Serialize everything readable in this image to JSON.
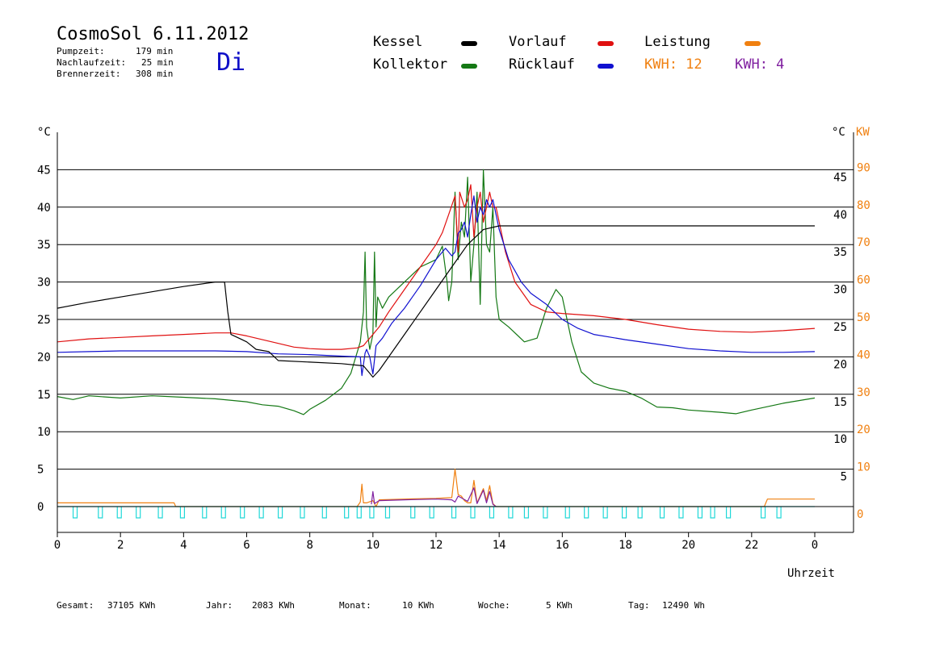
{
  "header": {
    "title": "CosmoSol 6.11.2012",
    "day": "Di",
    "stats": [
      {
        "label": "Pumpzeit:",
        "value": "179 min"
      },
      {
        "label": "Nachlaufzeit:",
        "value": "25 min"
      },
      {
        "label": "Brennerzeit:",
        "value": "308 min"
      }
    ]
  },
  "legend": [
    {
      "label": "Kessel",
      "color": "#000000"
    },
    {
      "label": "Kollektor",
      "color": "#147814"
    },
    {
      "label": "Vorlauf",
      "color": "#e01010"
    },
    {
      "label": "Rücklauf",
      "color": "#1010d0"
    },
    {
      "label": "Leistung",
      "color": "#f08010"
    },
    {
      "label": "KWH: 12",
      "color": "#f08010"
    },
    {
      "label": "KWH: 4",
      "color": "#8020a0"
    }
  ],
  "footer": [
    {
      "label": "Gesamt:",
      "value": "37105 KWh"
    },
    {
      "label": "Jahr:",
      "value": "2083 KWh"
    },
    {
      "label": "Monat:",
      "value": "10 KWh"
    },
    {
      "label": "Woche:",
      "value": "5 KWh"
    },
    {
      "label": "Tag:",
      "value": "12490 Wh"
    }
  ],
  "chart_data": {
    "type": "line",
    "xlabel": "Uhrzeit",
    "ylabel": "°C",
    "ylabel_right": "KW",
    "xlim": [
      0,
      24
    ],
    "ylim": [
      0,
      50
    ],
    "x_tick_labels": [
      "0",
      "2",
      "4",
      "6",
      "8",
      "10",
      "12",
      "14",
      "16",
      "18",
      "20",
      "22",
      "0"
    ],
    "y_tick_labels": [
      "0",
      "5",
      "10",
      "15",
      "20",
      "25",
      "30",
      "35",
      "40",
      "45"
    ],
    "y_right_labels": [
      "5",
      "10",
      "15",
      "20",
      "25",
      "30",
      "35",
      "40",
      "45"
    ],
    "kw_tick_labels": [
      "0",
      "10",
      "20",
      "30",
      "40",
      "50",
      "60",
      "70",
      "80",
      "90"
    ],
    "grid": "horizontal",
    "series": [
      {
        "name": "Kessel",
        "color": "#000000",
        "points": [
          [
            0,
            26.5
          ],
          [
            1,
            27.3
          ],
          [
            2,
            28.0
          ],
          [
            3,
            28.7
          ],
          [
            4,
            29.4
          ],
          [
            5,
            30
          ],
          [
            5.3,
            30
          ],
          [
            5.4,
            26
          ],
          [
            5.5,
            23
          ],
          [
            5.8,
            22.4
          ],
          [
            6,
            22
          ],
          [
            6.3,
            21
          ],
          [
            6.7,
            20.7
          ],
          [
            7,
            19.5
          ],
          [
            8,
            19.3
          ],
          [
            9,
            19.1
          ],
          [
            9.7,
            18.8
          ],
          [
            9.9,
            17.8
          ],
          [
            10,
            17.3
          ],
          [
            10.2,
            18.2
          ],
          [
            10.5,
            20
          ],
          [
            11,
            23
          ],
          [
            11.5,
            26
          ],
          [
            12,
            29
          ],
          [
            12.5,
            32
          ],
          [
            13,
            35
          ],
          [
            13.5,
            37
          ],
          [
            14,
            37.5
          ],
          [
            15,
            37.5
          ],
          [
            18,
            37.5
          ],
          [
            20,
            37.5
          ],
          [
            22,
            37.5
          ],
          [
            24,
            37.5
          ]
        ]
      },
      {
        "name": "Kollektor",
        "color": "#147814",
        "points": [
          [
            0,
            14.7
          ],
          [
            0.5,
            14.3
          ],
          [
            1,
            14.8
          ],
          [
            2,
            14.5
          ],
          [
            3,
            14.8
          ],
          [
            4,
            14.6
          ],
          [
            5,
            14.4
          ],
          [
            6,
            14
          ],
          [
            6.5,
            13.6
          ],
          [
            7,
            13.4
          ],
          [
            7.5,
            12.8
          ],
          [
            7.8,
            12.3
          ],
          [
            8,
            13
          ],
          [
            8.5,
            14.2
          ],
          [
            9,
            15.8
          ],
          [
            9.3,
            17.8
          ],
          [
            9.6,
            22
          ],
          [
            9.7,
            26
          ],
          [
            9.75,
            34
          ],
          [
            9.8,
            24
          ],
          [
            9.9,
            21
          ],
          [
            10,
            23
          ],
          [
            10.05,
            34
          ],
          [
            10.1,
            24
          ],
          [
            10.15,
            28
          ],
          [
            10.3,
            26.5
          ],
          [
            10.5,
            28
          ],
          [
            11,
            30
          ],
          [
            11.5,
            32
          ],
          [
            12,
            33
          ],
          [
            12.2,
            34.8
          ],
          [
            12.35,
            30
          ],
          [
            12.4,
            27.5
          ],
          [
            12.5,
            30
          ],
          [
            12.6,
            42
          ],
          [
            12.7,
            33
          ],
          [
            12.8,
            38
          ],
          [
            12.9,
            36
          ],
          [
            13,
            44
          ],
          [
            13.1,
            30
          ],
          [
            13.2,
            35
          ],
          [
            13.3,
            42
          ],
          [
            13.4,
            27
          ],
          [
            13.5,
            45
          ],
          [
            13.6,
            35
          ],
          [
            13.7,
            34
          ],
          [
            13.8,
            40
          ],
          [
            13.9,
            28
          ],
          [
            14,
            25
          ],
          [
            14.3,
            24
          ],
          [
            14.8,
            22
          ],
          [
            15.2,
            22.5
          ],
          [
            15.5,
            26.5
          ],
          [
            15.8,
            29
          ],
          [
            16,
            28
          ],
          [
            16.3,
            22
          ],
          [
            16.6,
            18
          ],
          [
            17,
            16.5
          ],
          [
            17.5,
            15.8
          ],
          [
            18,
            15.4
          ],
          [
            18.5,
            14.5
          ],
          [
            19,
            13.3
          ],
          [
            19.5,
            13.2
          ],
          [
            20,
            12.9
          ],
          [
            21,
            12.6
          ],
          [
            21.5,
            12.4
          ],
          [
            22,
            12.9
          ],
          [
            23,
            13.8
          ],
          [
            24,
            14.5
          ]
        ]
      },
      {
        "name": "Vorlauf",
        "color": "#e01010",
        "points": [
          [
            0,
            22
          ],
          [
            1,
            22.4
          ],
          [
            2,
            22.6
          ],
          [
            3,
            22.8
          ],
          [
            4,
            23
          ],
          [
            5,
            23.2
          ],
          [
            5.5,
            23.2
          ],
          [
            6,
            22.8
          ],
          [
            6.5,
            22.3
          ],
          [
            7,
            21.8
          ],
          [
            7.5,
            21.3
          ],
          [
            8,
            21.1
          ],
          [
            8.5,
            21
          ],
          [
            9,
            21
          ],
          [
            9.5,
            21.2
          ],
          [
            9.7,
            21.5
          ],
          [
            9.8,
            22
          ],
          [
            10,
            23
          ],
          [
            10.2,
            24
          ],
          [
            10.5,
            26
          ],
          [
            11,
            29
          ],
          [
            11.5,
            32
          ],
          [
            12,
            35
          ],
          [
            12.2,
            36.6
          ],
          [
            12.4,
            39
          ],
          [
            12.6,
            41.5
          ],
          [
            12.7,
            34
          ],
          [
            12.75,
            42
          ],
          [
            12.9,
            40
          ],
          [
            13,
            41
          ],
          [
            13.1,
            43
          ],
          [
            13.2,
            36
          ],
          [
            13.3,
            40
          ],
          [
            13.4,
            42
          ],
          [
            13.5,
            38
          ],
          [
            13.6,
            40
          ],
          [
            13.7,
            42
          ],
          [
            13.8,
            40
          ],
          [
            13.9,
            40
          ],
          [
            14,
            38
          ],
          [
            14.2,
            34
          ],
          [
            14.5,
            30
          ],
          [
            15,
            27
          ],
          [
            15.5,
            26
          ],
          [
            16,
            25.8
          ],
          [
            17,
            25.5
          ],
          [
            18,
            25
          ],
          [
            19,
            24.3
          ],
          [
            20,
            23.7
          ],
          [
            21,
            23.4
          ],
          [
            22,
            23.3
          ],
          [
            23,
            23.5
          ],
          [
            24,
            23.8
          ]
        ]
      },
      {
        "name": "Rücklauf",
        "color": "#1010d0",
        "points": [
          [
            0,
            20.6
          ],
          [
            1,
            20.7
          ],
          [
            2,
            20.8
          ],
          [
            3,
            20.8
          ],
          [
            4,
            20.8
          ],
          [
            5,
            20.8
          ],
          [
            6,
            20.7
          ],
          [
            7,
            20.4
          ],
          [
            8,
            20.3
          ],
          [
            9,
            20.1
          ],
          [
            9.6,
            20
          ],
          [
            9.65,
            17.5
          ],
          [
            9.75,
            20.5
          ],
          [
            9.8,
            21
          ],
          [
            9.9,
            20
          ],
          [
            10,
            17.7
          ],
          [
            10.1,
            21.5
          ],
          [
            10.3,
            22.5
          ],
          [
            10.6,
            24.5
          ],
          [
            11,
            26.5
          ],
          [
            11.5,
            29.5
          ],
          [
            12,
            33
          ],
          [
            12.3,
            34.5
          ],
          [
            12.5,
            33.5
          ],
          [
            12.6,
            34
          ],
          [
            12.7,
            36.5
          ],
          [
            12.8,
            37
          ],
          [
            12.9,
            38
          ],
          [
            13,
            36
          ],
          [
            13.1,
            39
          ],
          [
            13.2,
            41.5
          ],
          [
            13.3,
            38
          ],
          [
            13.4,
            40
          ],
          [
            13.5,
            39
          ],
          [
            13.6,
            41
          ],
          [
            13.7,
            40
          ],
          [
            13.8,
            41
          ],
          [
            13.9,
            39
          ],
          [
            14,
            37
          ],
          [
            14.3,
            33
          ],
          [
            14.7,
            30
          ],
          [
            15,
            28.5
          ],
          [
            15.5,
            27
          ],
          [
            16,
            25
          ],
          [
            16.5,
            23.8
          ],
          [
            17,
            23
          ],
          [
            18,
            22.3
          ],
          [
            19,
            21.7
          ],
          [
            20,
            21.1
          ],
          [
            21,
            20.8
          ],
          [
            22,
            20.6
          ],
          [
            23,
            20.6
          ],
          [
            24,
            20.7
          ]
        ]
      },
      {
        "name": "Leistung",
        "color": "#f08010",
        "points": [
          [
            0,
            0.5
          ],
          [
            1.5,
            0.5
          ],
          [
            3,
            0.5
          ],
          [
            3.7,
            0.5
          ],
          [
            3.75,
            0
          ],
          [
            9.5,
            0
          ],
          [
            9.6,
            0.6
          ],
          [
            9.65,
            3
          ],
          [
            9.7,
            0.5
          ],
          [
            9.8,
            0.5
          ],
          [
            10,
            0.8
          ],
          [
            10.1,
            0
          ],
          [
            10.2,
            0.9
          ],
          [
            11,
            1
          ],
          [
            12,
            1.1
          ],
          [
            12.5,
            1.2
          ],
          [
            12.6,
            5
          ],
          [
            12.7,
            1.6
          ],
          [
            12.8,
            1.4
          ],
          [
            12.9,
            0.8
          ],
          [
            13,
            0.5
          ],
          [
            13.1,
            0.5
          ],
          [
            13.2,
            3.5
          ],
          [
            13.3,
            0.5
          ],
          [
            13.5,
            2.4
          ],
          [
            13.6,
            0.8
          ],
          [
            13.7,
            2.8
          ],
          [
            13.8,
            0.4
          ],
          [
            13.9,
            0
          ],
          [
            22.4,
            0
          ],
          [
            22.5,
            1
          ],
          [
            24,
            1
          ]
        ]
      },
      {
        "name": "KWH: 4",
        "color": "#8020a0",
        "points": [
          [
            9.95,
            0.3
          ],
          [
            10,
            2
          ],
          [
            10.05,
            0.4
          ],
          [
            10.2,
            0.8
          ],
          [
            11,
            0.9
          ],
          [
            12,
            1
          ],
          [
            12.5,
            0.9
          ],
          [
            12.6,
            0.6
          ],
          [
            12.7,
            1.4
          ],
          [
            13,
            0.7
          ],
          [
            13.2,
            2.5
          ],
          [
            13.3,
            0.4
          ],
          [
            13.5,
            2.2
          ],
          [
            13.6,
            0.5
          ],
          [
            13.7,
            2
          ],
          [
            13.8,
            0.3
          ],
          [
            13.9,
            0
          ]
        ]
      }
    ],
    "pump_pulses_x": [
      0.5,
      1.3,
      1.9,
      2.5,
      3.2,
      3.9,
      4.6,
      5.2,
      5.8,
      6.4,
      7.0,
      7.7,
      8.4,
      9.1,
      9.5,
      9.9,
      10.4,
      11.2,
      11.8,
      12.5,
      13.1,
      13.7,
      14.3,
      14.8,
      15.4,
      16.1,
      16.7,
      17.3,
      17.9,
      18.4,
      19.1,
      19.7,
      20.3,
      20.7,
      21.2,
      22.3,
      22.8
    ]
  }
}
